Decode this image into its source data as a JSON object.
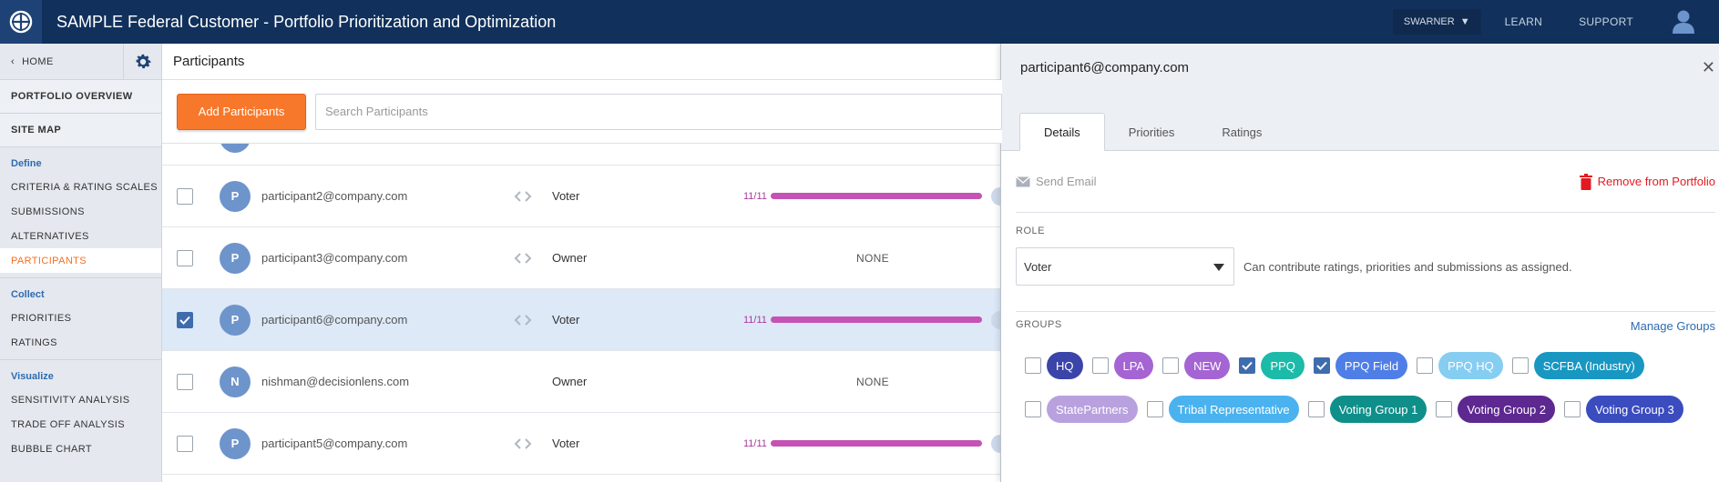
{
  "header": {
    "title": "SAMPLE Federal Customer - Portfolio Prioritization and Optimization",
    "user": "SWARNER",
    "learn": "LEARN",
    "support": "SUPPORT"
  },
  "sidebar": {
    "home": "HOME",
    "top_items": [
      "PORTFOLIO OVERVIEW",
      "SITE MAP"
    ],
    "sections": [
      {
        "heading": "Define",
        "items": [
          "CRITERIA & RATING SCALES",
          "SUBMISSIONS",
          "ALTERNATIVES",
          "PARTICIPANTS"
        ]
      },
      {
        "heading": "Collect",
        "items": [
          "PRIORITIES",
          "RATINGS"
        ]
      },
      {
        "heading": "Visualize",
        "items": [
          "SENSITIVITY ANALYSIS",
          "TRADE OFF ANALYSIS",
          "BUBBLE CHART"
        ]
      }
    ],
    "active_item": "PARTICIPANTS"
  },
  "main": {
    "title": "Participants",
    "add_button": "Add Participants",
    "search_placeholder": "Search Participants",
    "rows": [
      {
        "initial": "P",
        "email": "participant2@company.com",
        "role": "Voter",
        "progress": "11/11",
        "progress_fraction": 1.0,
        "checked": false,
        "selected": false
      },
      {
        "initial": "P",
        "email": "participant3@company.com",
        "role": "Owner",
        "progress": "NONE",
        "checked": false,
        "selected": false
      },
      {
        "initial": "P",
        "email": "participant6@company.com",
        "role": "Voter",
        "progress": "11/11",
        "progress_fraction": 1.0,
        "checked": true,
        "selected": true
      },
      {
        "initial": "N",
        "email": "nishman@decisionlens.com",
        "role": "Owner",
        "progress": "NONE",
        "checked": false,
        "selected": false
      },
      {
        "initial": "P",
        "email": "participant5@company.com",
        "role": "Voter",
        "progress": "11/11",
        "progress_fraction": 1.0,
        "checked": false,
        "selected": false
      }
    ],
    "progress_color": "#c552b5"
  },
  "panel": {
    "title": "participant6@company.com",
    "tabs": [
      "Details",
      "Priorities",
      "Ratings"
    ],
    "active_tab": "Details",
    "send_email": "Send Email",
    "remove": "Remove from Portfolio",
    "role_label": "ROLE",
    "role_value": "Voter",
    "role_desc": "Can contribute ratings, priorities and submissions as assigned.",
    "groups_label": "GROUPS",
    "manage_groups": "Manage Groups",
    "groups": [
      {
        "name": "HQ",
        "color": "#3b44a8",
        "checked": false
      },
      {
        "name": "LPA",
        "color": "#a564d3",
        "checked": false
      },
      {
        "name": "NEW",
        "color": "#a564d3",
        "checked": false
      },
      {
        "name": "PPQ",
        "color": "#1cbaa9",
        "checked": true
      },
      {
        "name": "PPQ Field",
        "color": "#4f7ee6",
        "checked": true
      },
      {
        "name": "PPQ HQ",
        "color": "#86cdf2",
        "checked": false
      },
      {
        "name": "SCFBA (Industry)",
        "color": "#1797c2",
        "checked": false
      },
      {
        "name": "StatePartners",
        "color": "#b8a1de",
        "checked": false
      },
      {
        "name": "Tribal Representative",
        "color": "#4ab2ee",
        "checked": false
      },
      {
        "name": "Voting Group 1",
        "color": "#0f8f8a",
        "checked": false
      },
      {
        "name": "Voting Group 2",
        "color": "#5d2890",
        "checked": false
      },
      {
        "name": "Voting Group 3",
        "color": "#3b4cbf",
        "checked": false
      }
    ]
  }
}
